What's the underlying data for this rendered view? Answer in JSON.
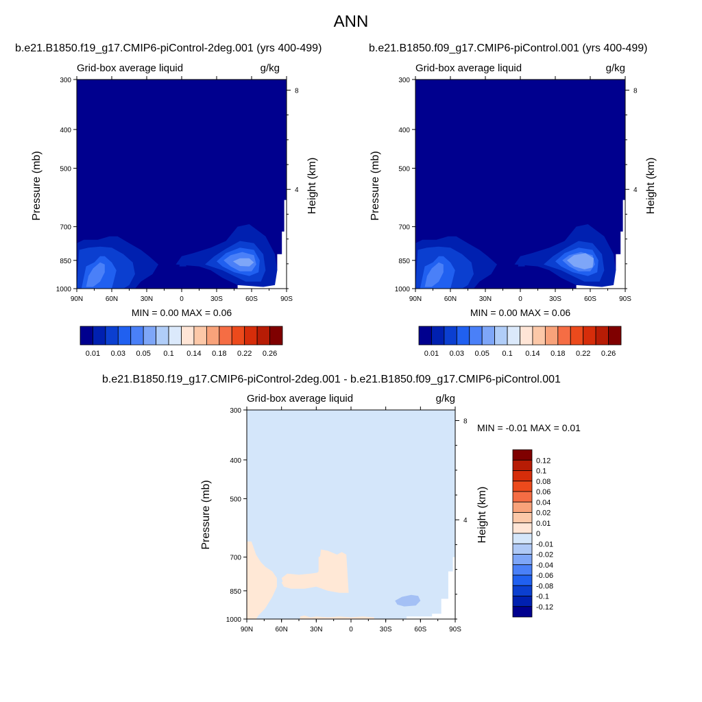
{
  "figure": {
    "title": "ANN"
  },
  "panels": [
    {
      "case_title": "b.e21.B1850.f19_g17.CMIP6-piControl-2deg.001 (yrs 400-499)",
      "left_label": "Grid-box average liquid",
      "right_label": "g/kg",
      "stats": "MIN =   0.00  MAX =   0.06"
    },
    {
      "case_title": "b.e21.B1850.f09_g17.CMIP6-piControl.001 (yrs 400-499)",
      "left_label": "Grid-box average liquid",
      "right_label": "g/kg",
      "stats": "MIN =   0.00  MAX =   0.06"
    },
    {
      "case_title": "b.e21.B1850.f19_g17.CMIP6-piControl-2deg.001 - b.e21.B1850.f09_g17.CMIP6-piControl.001",
      "left_label": "Grid-box average liquid",
      "right_label": "g/kg",
      "stats": "MIN =  -0.01  MAX =   0.01"
    }
  ],
  "chart_data": [
    {
      "type": "heatmap",
      "title": "b.e21.B1850.f19_g17.CMIP6-piControl-2deg.001 (yrs 400-499)",
      "xlabel": "",
      "ylabel": "Pressure (mb)",
      "y2label": "Height (km)",
      "x_ticks": [
        "90N",
        "60N",
        "30N",
        "0",
        "30S",
        "60S",
        "90S"
      ],
      "y_ticks": [
        "300",
        "400",
        "500",
        "700",
        "850",
        "1000"
      ],
      "y_ticks_values": [
        300,
        400,
        500,
        700,
        850,
        1000
      ],
      "y2_ticks": [
        "8",
        "4"
      ],
      "y2_ticks_values": [
        8,
        4
      ],
      "ylim": [
        300,
        1000
      ],
      "xlim": [
        90,
        -90
      ],
      "log_y": true,
      "colorbar_orientation": "horizontal",
      "colorbar_labels": [
        "0.01",
        "0.03",
        "0.05",
        "0.1",
        "0.14",
        "0.18",
        "0.22",
        "0.26"
      ],
      "min": 0.0,
      "max": 0.06
    },
    {
      "type": "heatmap",
      "title": "b.e21.B1850.f09_g17.CMIP6-piControl.001 (yrs 400-499)",
      "xlabel": "",
      "ylabel": "Pressure (mb)",
      "y2label": "Height (km)",
      "x_ticks": [
        "90N",
        "60N",
        "30N",
        "0",
        "30S",
        "60S",
        "90S"
      ],
      "y_ticks": [
        "300",
        "400",
        "500",
        "700",
        "850",
        "1000"
      ],
      "y_ticks_values": [
        300,
        400,
        500,
        700,
        850,
        1000
      ],
      "y2_ticks": [
        "8",
        "4"
      ],
      "y2_ticks_values": [
        8,
        4
      ],
      "ylim": [
        300,
        1000
      ],
      "xlim": [
        90,
        -90
      ],
      "log_y": true,
      "colorbar_orientation": "horizontal",
      "colorbar_labels": [
        "0.01",
        "0.03",
        "0.05",
        "0.1",
        "0.14",
        "0.18",
        "0.22",
        "0.26"
      ],
      "min": 0.0,
      "max": 0.06
    },
    {
      "type": "heatmap",
      "title": "b.e21.B1850.f19_g17.CMIP6-piControl-2deg.001 - b.e21.B1850.f09_g17.CMIP6-piControl.001",
      "xlabel": "",
      "ylabel": "Pressure (mb)",
      "y2label": "Height (km)",
      "x_ticks": [
        "90N",
        "60N",
        "30N",
        "0",
        "30S",
        "60S",
        "90S"
      ],
      "y_ticks": [
        "300",
        "400",
        "500",
        "700",
        "850",
        "1000"
      ],
      "y_ticks_values": [
        300,
        400,
        500,
        700,
        850,
        1000
      ],
      "y2_ticks": [
        "8",
        "4"
      ],
      "y2_ticks_values": [
        8,
        4
      ],
      "ylim": [
        300,
        1000
      ],
      "xlim": [
        90,
        -90
      ],
      "log_y": true,
      "colorbar_orientation": "vertical",
      "colorbar_labels": [
        "0.12",
        "0.1",
        "0.08",
        "0.06",
        "0.04",
        "0.02",
        "0.01",
        "0",
        "-0.01",
        "-0.02",
        "-0.04",
        "-0.06",
        "-0.08",
        "-0.1",
        "-0.12"
      ],
      "min": -0.01,
      "max": 0.01
    }
  ],
  "colormaps": {
    "main": [
      "#00008e",
      "#0020b0",
      "#0b3fd0",
      "#2060f0",
      "#4a80f8",
      "#7ea6f8",
      "#b0cdf8",
      "#dbe9fb",
      "#ffe5d6",
      "#fcc8a8",
      "#f8a27a",
      "#f56d44",
      "#ec4a1c",
      "#d62d0a",
      "#b71c05",
      "#7f0000"
    ],
    "diff": [
      "#7f0000",
      "#b71c05",
      "#d62d0a",
      "#ec4a1c",
      "#f56d44",
      "#f8a27a",
      "#fcc8a8",
      "#ffe5d6",
      "#d4e6fa",
      "#afc9f6",
      "#7ea6f8",
      "#4a80f8",
      "#2060f0",
      "#0b3fd0",
      "#0020b0",
      "#00008e"
    ],
    "diff_background": "#d4e6fa",
    "diff_positive": "#ffe8d6",
    "diff_negative": "#a4c0f5",
    "missing": "#ffffff"
  }
}
